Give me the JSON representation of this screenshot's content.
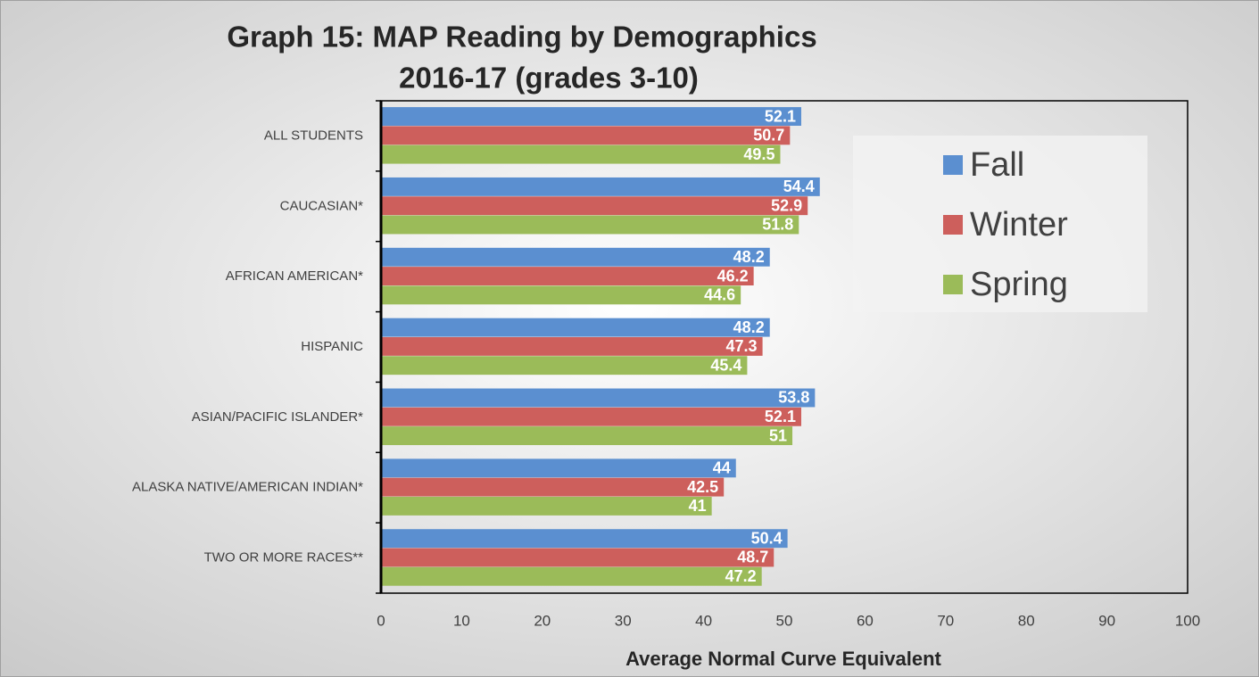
{
  "chart_data": {
    "type": "bar",
    "orientation": "horizontal",
    "title": "Graph 15: MAP Reading by Demographics",
    "subtitle": "2016-17 (grades 3-10)",
    "x_label": "Average Normal Curve Equivalent",
    "categories": [
      "ALL STUDENTS",
      "CAUCASIAN*",
      "AFRICAN AMERICAN*",
      "HISPANIC",
      "ASIAN/PACIFIC ISLANDER*",
      "ALASKA NATIVE/AMERICAN INDIAN*",
      "TWO OR MORE RACES**"
    ],
    "series": [
      {
        "name": "Fall",
        "color": "#5b8fd0",
        "values": [
          52.1,
          54.4,
          48.2,
          48.2,
          53.8,
          44,
          50.4
        ]
      },
      {
        "name": "Winter",
        "color": "#cd5f5c",
        "values": [
          50.7,
          52.9,
          46.2,
          47.3,
          52.1,
          42.5,
          48.7
        ]
      },
      {
        "name": "Spring",
        "color": "#9bbb59",
        "values": [
          49.5,
          51.8,
          44.6,
          45.4,
          51,
          41,
          47.2
        ]
      }
    ],
    "xlim": [
      0,
      100
    ],
    "xticks": [
      0,
      10,
      20,
      30,
      40,
      50,
      60,
      70,
      80,
      90,
      100
    ],
    "grid": false,
    "legend": "right"
  }
}
